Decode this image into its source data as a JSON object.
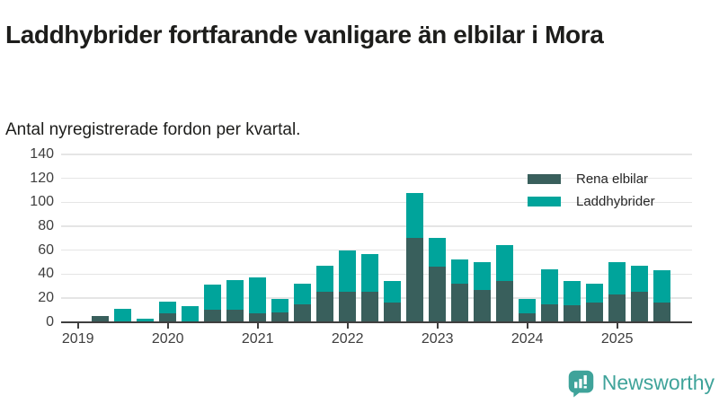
{
  "header": {
    "title": "Laddhybrider fortfarande vanligare än elbilar i Mora",
    "subtitle": "Antal nyregistrerade fordon per kvartal."
  },
  "chart_data": {
    "type": "bar",
    "stacked": true,
    "title": "Laddhybrider fortfarande vanligare än elbilar i Mora",
    "subtitle": "Antal nyregistrerade fordon per kvartal.",
    "categories": [
      "2019Q1",
      "2019Q2",
      "2019Q3",
      "2019Q4",
      "2020Q1",
      "2020Q2",
      "2020Q3",
      "2020Q4",
      "2021Q1",
      "2021Q2",
      "2021Q3",
      "2021Q4",
      "2022Q1",
      "2022Q2",
      "2022Q3",
      "2022Q4",
      "2023Q1",
      "2023Q2",
      "2023Q3",
      "2023Q4",
      "2024Q1",
      "2024Q2",
      "2024Q3",
      "2024Q4",
      "2025Q1",
      "2025Q2",
      "2025Q3"
    ],
    "series": [
      {
        "name": "Rena elbilar",
        "color": "#395F5C",
        "values": [
          0,
          5,
          0,
          0,
          7,
          0,
          10,
          10,
          7,
          8,
          15,
          25,
          25,
          25,
          16,
          70,
          46,
          32,
          27,
          34,
          7,
          15,
          14,
          16,
          23,
          25,
          16
        ]
      },
      {
        "name": "Laddhybrider",
        "color": "#00A49B",
        "values": [
          0,
          0,
          11,
          3,
          10,
          13,
          21,
          25,
          30,
          11,
          17,
          22,
          35,
          32,
          18,
          38,
          24,
          20,
          23,
          30,
          12,
          29,
          20,
          16,
          27,
          22,
          27
        ]
      }
    ],
    "y_ticks": [
      0,
      20,
      40,
      60,
      80,
      100,
      120,
      140
    ],
    "ylim": [
      0,
      140
    ],
    "x_tick_labels": [
      "2019",
      "2020",
      "2021",
      "2022",
      "2023",
      "2024",
      "2025"
    ],
    "xlabel": "",
    "ylabel": "",
    "grid": "horizontal",
    "legend_position": "top-right"
  },
  "footer": {
    "brand": "Newsworthy",
    "brand_color": "#3fa39a"
  }
}
